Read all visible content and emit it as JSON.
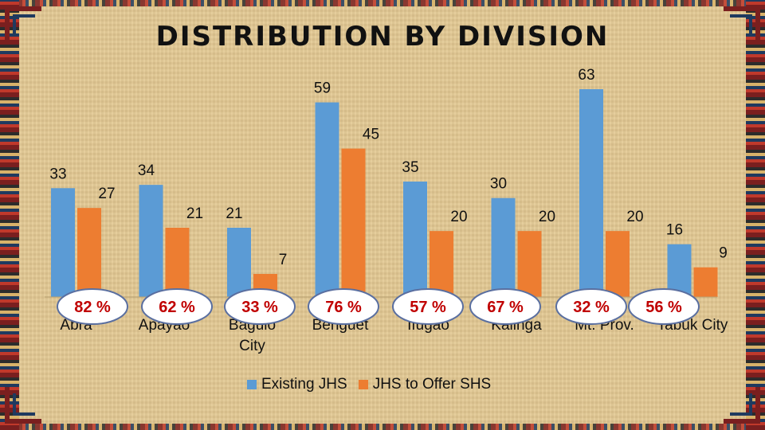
{
  "chart_data": {
    "type": "bar",
    "title": "DISTRIBUTION BY DIVISION",
    "categories": [
      "Abra",
      "Apayao",
      "Baguio City",
      "Benguet",
      "Ifugao",
      "Kalinga",
      "Mt. Prov.",
      "Tabuk City"
    ],
    "series": [
      {
        "name": "Existing JHS",
        "values": [
          33,
          34,
          21,
          59,
          35,
          30,
          63,
          16
        ],
        "color": "#5b9bd5"
      },
      {
        "name": "JHS to Offer SHS",
        "values": [
          27,
          21,
          7,
          45,
          20,
          20,
          20,
          9
        ],
        "color": "#ed7d31"
      }
    ],
    "percentages": [
      "82 %",
      "62 %",
      "33 %",
      "76 %",
      "57 %",
      "67 %",
      "32 %",
      "56 %"
    ],
    "ylim": [
      0,
      63
    ],
    "grid": false,
    "legend": "bottom"
  }
}
